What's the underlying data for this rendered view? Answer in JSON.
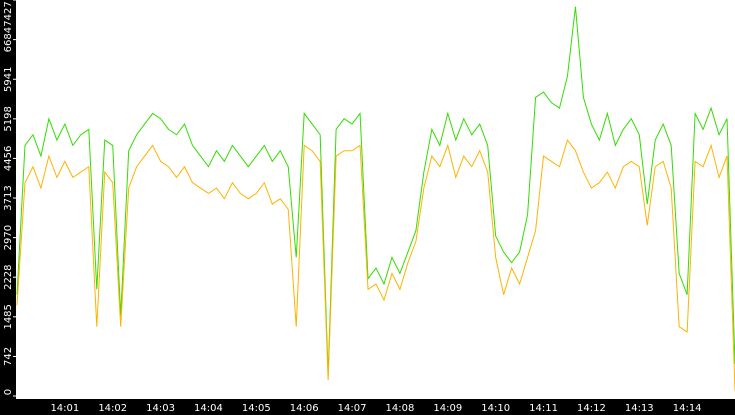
{
  "chart_data": {
    "type": "line",
    "categories": [
      null,
      null,
      null,
      null,
      null,
      null,
      "14:01",
      null,
      null,
      null,
      null,
      null,
      "14:02",
      null,
      null,
      null,
      null,
      null,
      "14:03",
      null,
      null,
      null,
      null,
      null,
      "14:04",
      null,
      null,
      null,
      null,
      null,
      "14:05",
      null,
      null,
      null,
      null,
      null,
      "14:06",
      null,
      null,
      null,
      null,
      null,
      "14:07",
      null,
      null,
      null,
      null,
      null,
      "14:08",
      null,
      null,
      null,
      null,
      null,
      "14:09",
      null,
      null,
      null,
      null,
      null,
      "14:10",
      null,
      null,
      null,
      null,
      null,
      "14:11",
      null,
      null,
      null,
      null,
      null,
      "14:12",
      null,
      null,
      null,
      null,
      null,
      "14:13",
      null,
      null,
      null,
      null,
      null,
      "14:14",
      null,
      null,
      null,
      null,
      null,
      null
    ],
    "series": [
      {
        "color": "#33dd00",
        "values": [
          1900,
          4700,
          4900,
          4500,
          5200,
          4800,
          5100,
          4700,
          4900,
          5000,
          2000,
          4800,
          4700,
          1500,
          4600,
          4900,
          5100,
          5300,
          5200,
          5000,
          4900,
          5100,
          4700,
          4500,
          4300,
          4600,
          4400,
          4700,
          4500,
          4300,
          4500,
          4700,
          4400,
          4600,
          4300,
          2600,
          5300,
          5100,
          4900,
          400,
          5000,
          5200,
          5100,
          5300,
          2200,
          2400,
          2100,
          2600,
          2300,
          2700,
          3100,
          4200,
          5000,
          4700,
          5300,
          4800,
          5200,
          4900,
          5100,
          4700,
          3000,
          2700,
          2500,
          2700,
          3400,
          5600,
          5700,
          5500,
          5400,
          6000,
          7300,
          5600,
          5100,
          4800,
          5300,
          4700,
          5000,
          5200,
          4900,
          3600,
          4800,
          5100,
          4700,
          2300,
          1900,
          5300,
          5000,
          5400,
          4900,
          5200,
          600
        ]
      },
      {
        "color": "#ffb300",
        "values": [
          1700,
          4000,
          4300,
          3900,
          4500,
          4100,
          4400,
          4100,
          4200,
          4300,
          1300,
          4200,
          4000,
          1300,
          3900,
          4300,
          4500,
          4700,
          4400,
          4300,
          4100,
          4300,
          4000,
          3900,
          3800,
          3900,
          3700,
          4000,
          3800,
          3700,
          3800,
          4000,
          3600,
          3700,
          3500,
          1300,
          4700,
          4600,
          4400,
          300,
          4500,
          4600,
          4600,
          4700,
          2000,
          2100,
          1800,
          2300,
          2000,
          2500,
          2900,
          3900,
          4500,
          4300,
          4700,
          4100,
          4500,
          4300,
          4600,
          4200,
          2600,
          1900,
          2400,
          2100,
          2600,
          3100,
          4500,
          4400,
          4300,
          4800,
          4600,
          4200,
          3900,
          4000,
          4200,
          3900,
          4300,
          4400,
          4300,
          3200,
          4300,
          4400,
          3900,
          1300,
          1200,
          4400,
          4300,
          4700,
          4100,
          4500,
          100
        ]
      }
    ],
    "ylim": [
      0,
      7427
    ],
    "yticks": [
      0,
      742,
      1485,
      2228,
      2970,
      3713,
      4456,
      5198,
      5941,
      6684,
      7427
    ]
  }
}
